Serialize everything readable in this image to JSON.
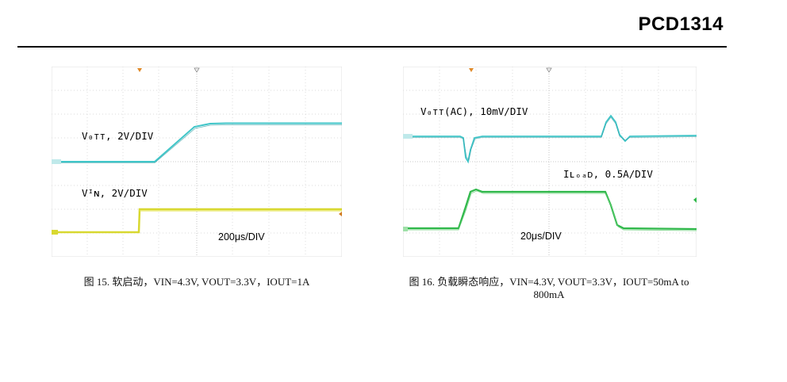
{
  "header": {
    "part_number": "PCD1314"
  },
  "figure15": {
    "vout_label": "V₀ᴛᴛ,  2V/DIV",
    "vin_label": "Vᴵɴ,  2V/DIV",
    "timebase": "200μs/DIV",
    "caption": "图 15. 软启动，VIN=4.3V, VOUT=3.3V，IOUT=1A",
    "vout_color": "#3fc5c8",
    "vin_color": "#d8d830"
  },
  "figure16": {
    "vout_label": "V₀ᴛᴛ(AC),  10mV/DIV",
    "iload_label": "Iʟₒₐᴅ,  0.5A/DIV",
    "timebase": "20μs/DIV",
    "caption_line1": "图 16. 负载瞬态响应，VIN=4.3V, VOUT=3.3V，IOUT=50mA to",
    "caption_line2": "800mA",
    "vout_color": "#3fc5c8",
    "iload_color": "#2fb84a"
  }
}
